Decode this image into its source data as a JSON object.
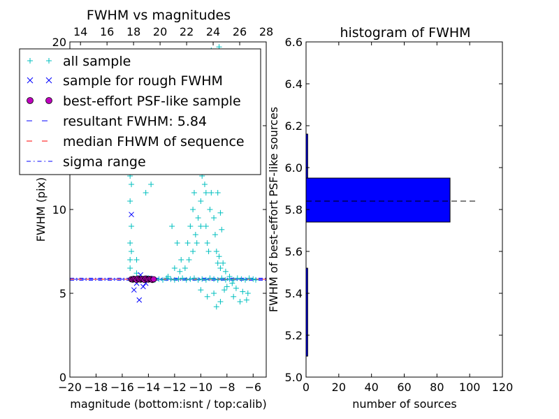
{
  "chart_data": [
    {
      "type": "scatter",
      "title": "FWHM vs magnitudes",
      "xlabel": "magnitude (bottom:isnt / top:calib)",
      "ylabel": "FWHM (pix)",
      "xlim": [
        -20,
        -5
      ],
      "ylim": [
        0,
        20
      ],
      "top_xlim": [
        13.2,
        28
      ],
      "x_ticks": [
        -20,
        -18,
        -16,
        -14,
        -12,
        -10,
        -8,
        -6
      ],
      "x_tick_labels": [
        "−20",
        "−18",
        "−16",
        "−14",
        "−12",
        "−10",
        "−8",
        "−6"
      ],
      "y_ticks": [
        0,
        5,
        10,
        15,
        20
      ],
      "y_tick_labels": [
        "0",
        "5",
        "10",
        "15",
        "20"
      ],
      "top_ticks": [
        14,
        16,
        18,
        20,
        22,
        24,
        26,
        28
      ],
      "top_tick_labels": [
        "14",
        "16",
        "18",
        "20",
        "22",
        "24",
        "26",
        "28"
      ],
      "hlines": {
        "resultant_fwhm": 5.84,
        "median": 5.84,
        "sigma_low": 5.78,
        "sigma_high": 5.9
      },
      "series": [
        {
          "name": "all sample",
          "marker": "+",
          "color": "#00bfbf",
          "points": [
            [
              -15.2,
              5.8
            ],
            [
              -15.0,
              5.85
            ],
            [
              -14.8,
              5.9
            ],
            [
              -14.6,
              5.8
            ],
            [
              -14.4,
              5.85
            ],
            [
              -14.2,
              5.8
            ],
            [
              -14.0,
              5.9
            ],
            [
              -13.8,
              5.85
            ],
            [
              -13.5,
              5.8
            ],
            [
              -13.2,
              5.85
            ],
            [
              -12.9,
              5.8
            ],
            [
              -12.6,
              5.9
            ],
            [
              -12.3,
              5.85
            ],
            [
              -12.0,
              5.8
            ],
            [
              -11.7,
              5.85
            ],
            [
              -11.4,
              5.9
            ],
            [
              -11.1,
              5.8
            ],
            [
              -10.8,
              5.85
            ],
            [
              -10.5,
              5.9
            ],
            [
              -10.2,
              5.8
            ],
            [
              -9.9,
              5.85
            ],
            [
              -9.6,
              5.8
            ],
            [
              -9.3,
              5.9
            ],
            [
              -9.0,
              5.85
            ],
            [
              -8.7,
              5.8
            ],
            [
              -8.4,
              5.9
            ],
            [
              -8.1,
              5.8
            ],
            [
              -7.8,
              5.85
            ],
            [
              -7.5,
              5.8
            ],
            [
              -7.2,
              5.9
            ],
            [
              -6.9,
              5.85
            ],
            [
              -6.6,
              5.8
            ],
            [
              -6.3,
              5.9
            ],
            [
              -6.0,
              5.85
            ],
            [
              -5.8,
              5.8
            ],
            [
              -15.4,
              7.0
            ],
            [
              -15.4,
              8.0
            ],
            [
              -15.3,
              9.0
            ],
            [
              -15.4,
              10.5
            ],
            [
              -15.3,
              11.5
            ],
            [
              -15.4,
              12.0
            ],
            [
              -15.3,
              13.0
            ],
            [
              -15.4,
              13.5
            ],
            [
              -15.4,
              6.5
            ],
            [
              -15.3,
              7.5
            ],
            [
              -14.9,
              7.0
            ],
            [
              -14.9,
              6.2
            ],
            [
              -14.8,
              12.5
            ],
            [
              -13.8,
              11.5
            ],
            [
              -14.2,
              11.0
            ],
            [
              -11.0,
              8.0
            ],
            [
              -10.8,
              9.0
            ],
            [
              -10.6,
              10.0
            ],
            [
              -10.5,
              11.0
            ],
            [
              -10.4,
              8.5
            ],
            [
              -10.2,
              9.5
            ],
            [
              -10.0,
              10.5
            ],
            [
              -9.9,
              12.0
            ],
            [
              -9.8,
              13.0
            ],
            [
              -9.7,
              11.5
            ],
            [
              -9.6,
              9.0
            ],
            [
              -9.5,
              8.0
            ],
            [
              -9.4,
              7.5
            ],
            [
              -9.3,
              10.0
            ],
            [
              -9.2,
              11.0
            ],
            [
              -9.0,
              9.5
            ],
            [
              -8.9,
              8.5
            ],
            [
              -8.8,
              7.5
            ],
            [
              -8.7,
              6.8
            ],
            [
              -8.6,
              7.2
            ],
            [
              -8.5,
              6.5
            ],
            [
              -8.3,
              6.8
            ],
            [
              -8.1,
              6.3
            ],
            [
              -7.8,
              6.0
            ],
            [
              -7.6,
              5.6
            ],
            [
              -7.3,
              5.3
            ],
            [
              -6.8,
              5.1
            ],
            [
              -6.4,
              5.0
            ],
            [
              -9.6,
              14.5
            ],
            [
              -9.5,
              15.5
            ],
            [
              -9.7,
              16.0
            ],
            [
              -9.5,
              17.5
            ],
            [
              -9.3,
              13.5
            ],
            [
              -9.8,
              12.5
            ],
            [
              -9.6,
              11.0
            ],
            [
              -10.0,
              9.0
            ],
            [
              -10.3,
              8.0
            ],
            [
              -10.6,
              7.5
            ],
            [
              -10.9,
              7.0
            ],
            [
              -11.2,
              6.5
            ],
            [
              -11.6,
              6.3
            ],
            [
              -12.0,
              6.5
            ],
            [
              -12.5,
              6.0
            ],
            [
              -11.5,
              7.0
            ],
            [
              -11.8,
              8.0
            ],
            [
              -12.2,
              9.0
            ],
            [
              -8.2,
              5.2
            ],
            [
              -8.0,
              5.4
            ],
            [
              -7.5,
              4.8
            ],
            [
              -7.0,
              4.5
            ],
            [
              -8.5,
              4.5
            ],
            [
              -9.0,
              5.0
            ],
            [
              -9.5,
              4.8
            ],
            [
              -10.0,
              5.2
            ],
            [
              -8.8,
              4.2
            ],
            [
              -6.5,
              4.6
            ],
            [
              -10.2,
              14.0
            ],
            [
              -9.8,
              18.5
            ],
            [
              -9.2,
              19.5
            ],
            [
              -8.6,
              19.7
            ],
            [
              -11.0,
              16.5
            ],
            [
              -11.5,
              13.0
            ],
            [
              -10.8,
              12.5
            ],
            [
              -9.3,
              15.0
            ],
            [
              -9.0,
              14.0
            ],
            [
              -8.9,
              12.8
            ],
            [
              -8.7,
              11.0
            ],
            [
              -8.5,
              9.8
            ],
            [
              -8.4,
              8.8
            ]
          ]
        },
        {
          "name": "sample for rough FWHM",
          "marker": "x",
          "color": "#0000ff",
          "points": [
            [
              -15.3,
              9.7
            ],
            [
              -15.1,
              5.2
            ],
            [
              -14.9,
              5.6
            ],
            [
              -14.7,
              4.6
            ],
            [
              -14.4,
              5.4
            ],
            [
              -14.2,
              5.6
            ],
            [
              -15.0,
              5.9
            ],
            [
              -14.5,
              5.9
            ],
            [
              -13.9,
              5.9
            ],
            [
              -14.6,
              6.1
            ]
          ]
        },
        {
          "name": "best-effort PSF-like sample",
          "marker": "o",
          "color": "#bf00bf",
          "points": [
            [
              -15.3,
              5.84
            ],
            [
              -15.2,
              5.82
            ],
            [
              -15.1,
              5.86
            ],
            [
              -15.0,
              5.84
            ],
            [
              -14.9,
              5.8
            ],
            [
              -14.8,
              5.88
            ],
            [
              -14.7,
              5.84
            ],
            [
              -14.6,
              5.82
            ],
            [
              -14.5,
              5.86
            ],
            [
              -14.4,
              5.84
            ],
            [
              -14.3,
              5.8
            ],
            [
              -14.2,
              5.88
            ],
            [
              -14.1,
              5.84
            ],
            [
              -14.0,
              5.82
            ],
            [
              -13.9,
              5.86
            ],
            [
              -13.8,
              5.84
            ],
            [
              -13.7,
              5.8
            ],
            [
              -13.6,
              5.84
            ]
          ]
        }
      ],
      "legend": {
        "position": "upper-left",
        "entries": [
          {
            "label": "all sample",
            "style": "plus",
            "color": "#00bfbf"
          },
          {
            "label": "sample for rough FWHM",
            "style": "x",
            "color": "#0000ff"
          },
          {
            "label": "best-effort PSF-like sample",
            "style": "circle",
            "color": "#bf00bf"
          },
          {
            "label": "resultant FWHM: 5.84",
            "style": "dash",
            "color": "#0000ff"
          },
          {
            "label": "median FHWM of sequence",
            "style": "dash",
            "color": "#ff0000"
          },
          {
            "label": "sigma range",
            "style": "dashdot",
            "color": "#0000ff"
          }
        ]
      }
    },
    {
      "type": "bar",
      "orientation": "horizontal",
      "title": "histogram of FWHM",
      "xlabel": "number of sources",
      "ylabel": "FWHM of best-effort PSF-like sources",
      "xlim": [
        0,
        120
      ],
      "ylim": [
        5.0,
        6.6
      ],
      "x_ticks": [
        0,
        20,
        40,
        60,
        80,
        100,
        120
      ],
      "x_tick_labels": [
        "0",
        "20",
        "40",
        "60",
        "80",
        "100",
        "120"
      ],
      "y_ticks": [
        5.0,
        5.2,
        5.4,
        5.6,
        5.8,
        6.0,
        6.2,
        6.4,
        6.6
      ],
      "y_tick_labels": [
        "5.0",
        "5.2",
        "5.4",
        "5.6",
        "5.8",
        "6.0",
        "6.2",
        "6.4",
        "6.6"
      ],
      "bars": [
        {
          "low": 5.1,
          "high": 5.52,
          "value": 1
        },
        {
          "low": 5.74,
          "high": 5.95,
          "value": 88
        },
        {
          "low": 5.95,
          "high": 6.16,
          "value": 1
        }
      ],
      "bar_color": "#0000ff",
      "reference_line": {
        "y": 5.84,
        "x_range": [
          0,
          104
        ],
        "style": "dashed",
        "color": "#000000"
      }
    }
  ]
}
